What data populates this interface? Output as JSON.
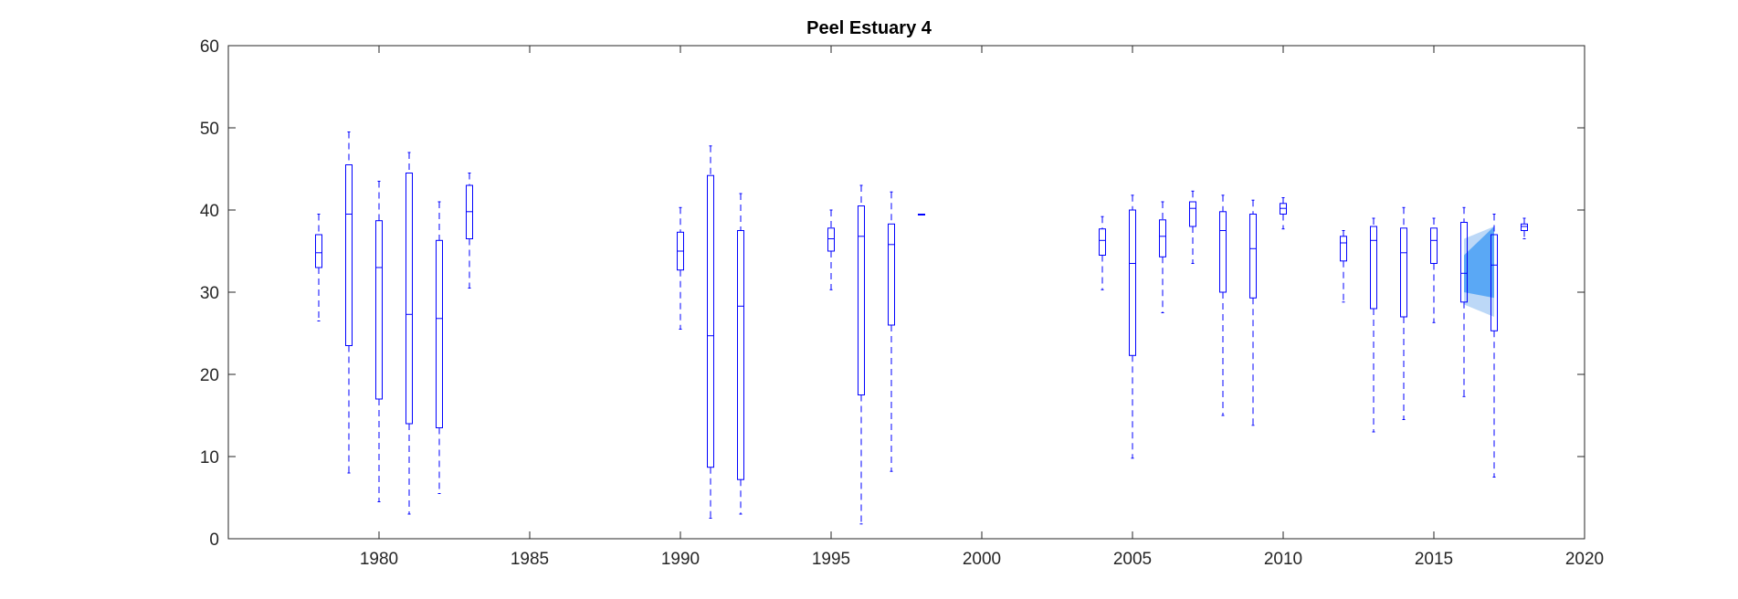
{
  "chart_data": {
    "type": "box",
    "title": "Peel Estuary 4",
    "xlabel": "",
    "ylabel": "",
    "xlim": [
      1975,
      2020
    ],
    "ylim": [
      0,
      60
    ],
    "x_ticks": [
      1980,
      1985,
      1990,
      1995,
      2000,
      2005,
      2010,
      2015,
      2020
    ],
    "y_ticks": [
      0,
      10,
      20,
      30,
      40,
      50,
      60
    ],
    "grid": false,
    "colors": {
      "box": "#0000ff",
      "band_light": "#bcd8f7",
      "band_dark": "#5aa8f5"
    },
    "boxes": [
      {
        "x": 1978,
        "min": 26.5,
        "q1": 33.0,
        "median": 34.8,
        "q3": 37.0,
        "max": 39.5
      },
      {
        "x": 1979,
        "min": 8.0,
        "q1": 23.5,
        "median": 39.5,
        "q3": 45.5,
        "max": 49.5
      },
      {
        "x": 1980,
        "min": 4.5,
        "q1": 17.0,
        "median": 33.0,
        "q3": 38.7,
        "max": 43.5
      },
      {
        "x": 1981,
        "min": 3.0,
        "q1": 14.0,
        "median": 27.3,
        "q3": 44.5,
        "max": 47.0
      },
      {
        "x": 1982,
        "min": 5.5,
        "q1": 13.5,
        "median": 26.8,
        "q3": 36.3,
        "max": 41.0
      },
      {
        "x": 1983,
        "min": 30.5,
        "q1": 36.5,
        "median": 39.8,
        "q3": 43.0,
        "max": 44.5
      },
      {
        "x": 1990,
        "min": 25.5,
        "q1": 32.7,
        "median": 35.0,
        "q3": 37.3,
        "max": 40.3
      },
      {
        "x": 1991,
        "min": 2.5,
        "q1": 8.7,
        "median": 24.7,
        "q3": 44.2,
        "max": 47.8
      },
      {
        "x": 1992,
        "min": 3.0,
        "q1": 7.2,
        "median": 28.3,
        "q3": 37.5,
        "max": 42.0
      },
      {
        "x": 1995,
        "min": 30.3,
        "q1": 35.0,
        "median": 36.5,
        "q3": 37.8,
        "max": 40.0
      },
      {
        "x": 1996,
        "min": 1.8,
        "q1": 17.5,
        "median": 36.8,
        "q3": 40.5,
        "max": 43.0
      },
      {
        "x": 1997,
        "min": 8.2,
        "q1": 26.0,
        "median": 35.8,
        "q3": 38.3,
        "max": 42.2
      },
      {
        "x": 1998,
        "min": 39.5,
        "q1": 39.5,
        "median": 39.5,
        "q3": 39.5,
        "max": 39.5
      },
      {
        "x": 2004,
        "min": 30.3,
        "q1": 34.5,
        "median": 36.3,
        "q3": 37.7,
        "max": 39.2
      },
      {
        "x": 2005,
        "min": 9.8,
        "q1": 22.3,
        "median": 33.5,
        "q3": 40.0,
        "max": 41.8
      },
      {
        "x": 2006,
        "min": 27.5,
        "q1": 34.3,
        "median": 36.8,
        "q3": 38.8,
        "max": 41.0
      },
      {
        "x": 2007,
        "min": 33.5,
        "q1": 38.0,
        "median": 40.2,
        "q3": 41.0,
        "max": 42.3
      },
      {
        "x": 2008,
        "min": 15.0,
        "q1": 30.0,
        "median": 37.5,
        "q3": 39.8,
        "max": 41.8
      },
      {
        "x": 2009,
        "min": 13.8,
        "q1": 29.3,
        "median": 35.3,
        "q3": 39.5,
        "max": 41.2
      },
      {
        "x": 2010,
        "min": 37.7,
        "q1": 39.5,
        "median": 40.2,
        "q3": 40.8,
        "max": 41.5
      },
      {
        "x": 2012,
        "min": 28.8,
        "q1": 33.8,
        "median": 36.0,
        "q3": 36.8,
        "max": 37.5
      },
      {
        "x": 2013,
        "min": 13.0,
        "q1": 28.0,
        "median": 36.3,
        "q3": 38.0,
        "max": 39.0
      },
      {
        "x": 2014,
        "min": 14.5,
        "q1": 27.0,
        "median": 34.8,
        "q3": 37.8,
        "max": 40.3
      },
      {
        "x": 2015,
        "min": 26.3,
        "q1": 33.5,
        "median": 36.3,
        "q3": 37.8,
        "max": 39.0
      },
      {
        "x": 2016,
        "min": 17.3,
        "q1": 28.8,
        "median": 32.3,
        "q3": 38.5,
        "max": 40.3
      },
      {
        "x": 2017,
        "min": 7.5,
        "q1": 25.3,
        "median": 33.3,
        "q3": 37.0,
        "max": 39.5
      },
      {
        "x": 2018,
        "min": 36.5,
        "q1": 37.5,
        "median": 38.0,
        "q3": 38.3,
        "max": 39.0
      }
    ],
    "bands": [
      {
        "name": "",
        "x": [
          2016,
          2017
        ],
        "low": [
          28.5,
          27.0
        ],
        "high": [
          36.5,
          38.0
        ],
        "shade": "light"
      },
      {
        "name": "",
        "x": [
          2016,
          2017
        ],
        "low": [
          30.0,
          29.3
        ],
        "high": [
          34.5,
          38.0
        ],
        "shade": "dark"
      }
    ]
  }
}
